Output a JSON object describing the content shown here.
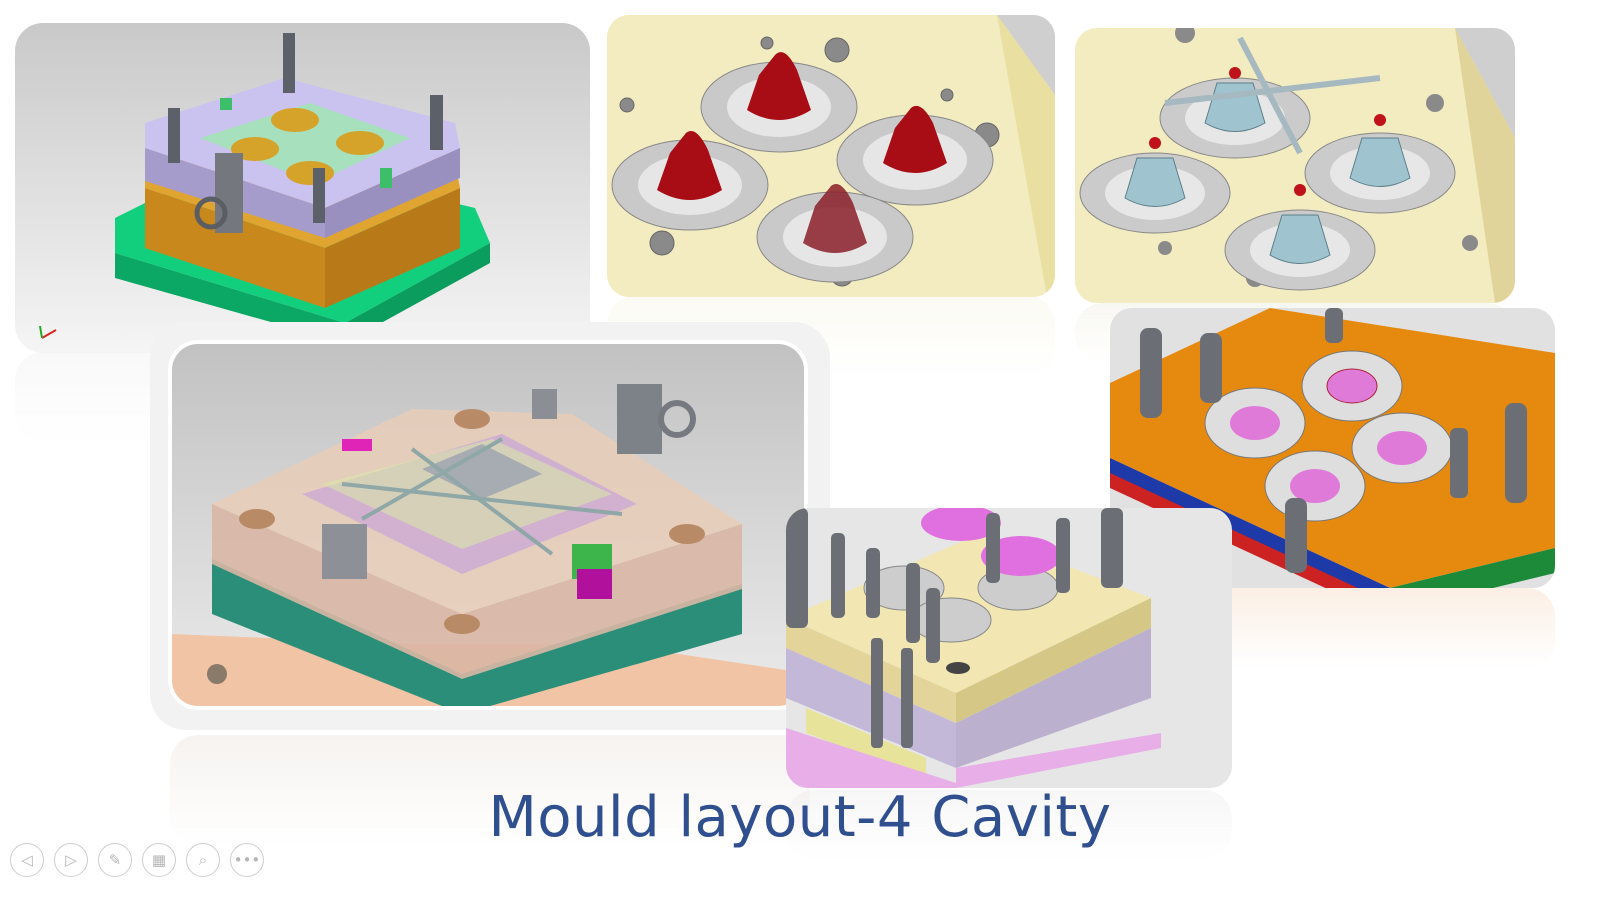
{
  "slide": {
    "title": "Mould layout-4 Cavity"
  },
  "images": [
    {
      "id": "mould-assembly-top-left"
    },
    {
      "id": "red-cavities-plate"
    },
    {
      "id": "runner-cores-plate"
    },
    {
      "id": "orange-cavity-plate"
    },
    {
      "id": "transparent-mould-assembly"
    },
    {
      "id": "mould-with-runner-system"
    }
  ],
  "nav": {
    "prev": "◁",
    "next": "▷",
    "pen": "✎",
    "slides": "▦",
    "zoom": "⌕",
    "more": "•••"
  },
  "colors": {
    "title": "#2f4f8f",
    "plate_cream": "#f4efc3",
    "cavity_red": "#b0121a",
    "orange_plate": "#e58b13",
    "green_base": "#12d07f"
  }
}
